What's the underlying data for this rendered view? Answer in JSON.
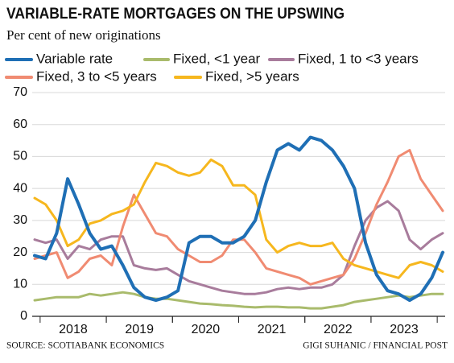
{
  "chart_data": {
    "type": "line",
    "title": "VARIABLE-RATE MORTGAGES ON THE UPSWING",
    "subtitle": "Per cent of new originations",
    "source": "SOURCE: SCOTIABANK ECONOMICS",
    "credit": "GIGI SUHANIC / FINANCIAL POST",
    "categories": [
      null,
      null,
      null,
      "2018",
      null,
      null,
      null,
      null,
      null,
      "2019",
      null,
      null,
      null,
      null,
      null,
      "2020",
      null,
      null,
      null,
      null,
      null,
      "2021",
      null,
      null,
      null,
      null,
      null,
      "2022",
      null,
      null,
      null,
      null,
      null,
      "2023",
      null,
      null,
      null,
      null
    ],
    "ylim": [
      0,
      70
    ],
    "yticks": [
      0,
      10,
      20,
      30,
      40,
      50,
      60,
      70
    ],
    "grid": true,
    "series": [
      {
        "name": "Variable rate",
        "color": "#1f6fb5",
        "values": [
          19,
          18,
          26,
          43,
          35,
          26,
          21,
          22,
          16,
          9,
          6,
          5,
          6,
          8,
          23,
          25,
          25,
          23,
          23,
          25,
          30,
          42,
          52,
          54,
          52,
          56,
          55,
          52,
          47,
          40,
          23,
          13,
          8,
          7,
          5,
          7,
          12,
          20
        ]
      },
      {
        "name": "Fixed, <1 year",
        "color": "#a9bb6c",
        "values": [
          5,
          5.5,
          6,
          6,
          6,
          7,
          6.5,
          7,
          7.5,
          7,
          6,
          5.5,
          5.5,
          5,
          4.5,
          4,
          3.8,
          3.5,
          3.3,
          3,
          2.8,
          3,
          3,
          2.8,
          2.8,
          2.5,
          2.5,
          3,
          3.5,
          4.5,
          5,
          5.5,
          6,
          6.5,
          6,
          6.5,
          7,
          7
        ]
      },
      {
        "name": "Fixed, 1 to <3 years",
        "color": "#a87c9c",
        "values": [
          24,
          23,
          24,
          18,
          22,
          21,
          24,
          25,
          25,
          16,
          15,
          14.5,
          15,
          13,
          11,
          10,
          9,
          8,
          7.5,
          7,
          7,
          7.5,
          8.5,
          9,
          8.5,
          9,
          9,
          10,
          13,
          22,
          30,
          34,
          36,
          33,
          24,
          21,
          24,
          26
        ]
      },
      {
        "name": "Fixed, 3 to <5 years",
        "color": "#f08b72",
        "values": [
          18,
          19,
          20,
          12,
          14,
          18,
          19,
          16,
          28,
          38,
          32,
          26,
          25,
          21,
          19,
          17,
          17,
          19,
          24,
          24,
          20,
          15,
          14,
          13,
          12,
          10,
          11,
          12,
          13,
          18,
          26,
          35,
          42,
          50,
          52,
          43,
          38,
          33
        ]
      },
      {
        "name": "Fixed, >5 years",
        "color": "#f6b71e",
        "values": [
          37,
          35,
          30,
          22,
          24,
          29,
          30,
          32,
          33,
          35,
          42,
          48,
          47,
          45,
          44,
          45,
          49,
          47,
          41,
          41,
          38,
          24,
          20,
          22,
          23,
          22,
          22,
          23,
          18,
          16,
          15,
          14,
          13,
          12,
          16,
          17,
          16,
          14
        ]
      }
    ]
  }
}
